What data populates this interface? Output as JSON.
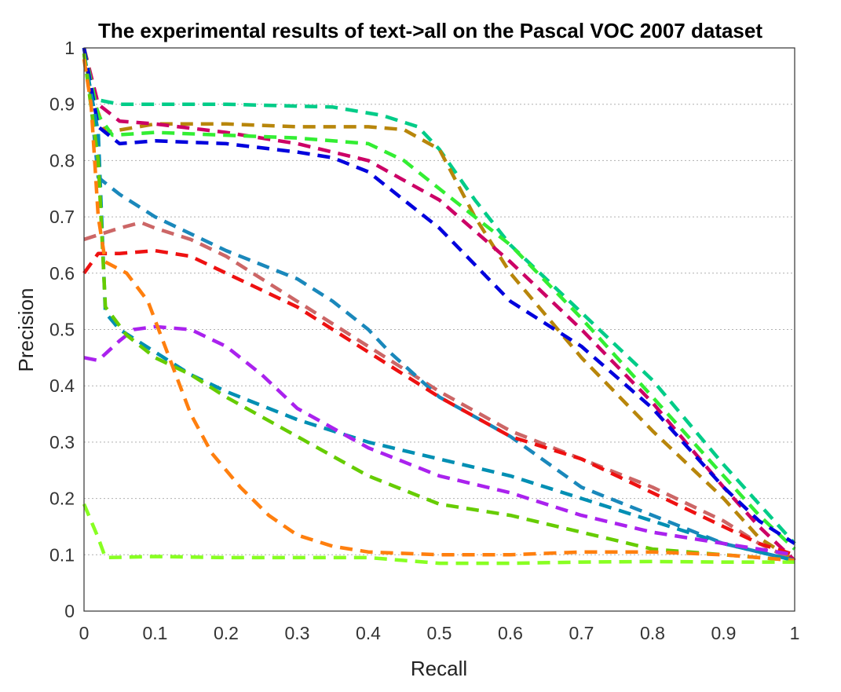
{
  "chart_data": {
    "type": "line",
    "title": "The experimental results of text->all on the Pascal VOC 2007 dataset",
    "xlabel": "Recall",
    "ylabel": "Precision",
    "xlim": [
      0,
      1
    ],
    "ylim": [
      0,
      1
    ],
    "x_ticks": [
      "0",
      "0.1",
      "0.2",
      "0.3",
      "0.4",
      "0.5",
      "0.6",
      "0.7",
      "0.8",
      "0.9",
      "1"
    ],
    "y_ticks": [
      "0",
      "0.1",
      "0.2",
      "0.3",
      "0.4",
      "0.5",
      "0.6",
      "0.7",
      "0.8",
      "0.9",
      "1"
    ],
    "grid": "horizontal dotted",
    "legend": "none",
    "series": [
      {
        "color": "#00cc88",
        "points": [
          [
            0,
            1.0
          ],
          [
            0.01,
            0.91
          ],
          [
            0.05,
            0.9
          ],
          [
            0.2,
            0.9
          ],
          [
            0.35,
            0.895
          ],
          [
            0.42,
            0.88
          ],
          [
            0.47,
            0.86
          ],
          [
            0.5,
            0.82
          ],
          [
            0.55,
            0.73
          ],
          [
            0.6,
            0.65
          ],
          [
            0.7,
            0.53
          ],
          [
            0.8,
            0.41
          ],
          [
            0.9,
            0.26
          ],
          [
            0.95,
            0.19
          ],
          [
            1.0,
            0.12
          ]
        ]
      },
      {
        "color": "#b8860b",
        "points": [
          [
            0,
            1.0
          ],
          [
            0.01,
            0.92
          ],
          [
            0.03,
            0.85
          ],
          [
            0.1,
            0.865
          ],
          [
            0.2,
            0.865
          ],
          [
            0.3,
            0.86
          ],
          [
            0.4,
            0.86
          ],
          [
            0.45,
            0.855
          ],
          [
            0.5,
            0.82
          ],
          [
            0.55,
            0.7
          ],
          [
            0.6,
            0.6
          ],
          [
            0.7,
            0.45
          ],
          [
            0.8,
            0.32
          ],
          [
            0.9,
            0.2
          ],
          [
            0.95,
            0.13
          ],
          [
            1.0,
            0.09
          ]
        ]
      },
      {
        "color": "#cc0066",
        "points": [
          [
            0,
            1.0
          ],
          [
            0.02,
            0.9
          ],
          [
            0.05,
            0.87
          ],
          [
            0.1,
            0.865
          ],
          [
            0.2,
            0.85
          ],
          [
            0.3,
            0.83
          ],
          [
            0.4,
            0.8
          ],
          [
            0.5,
            0.73
          ],
          [
            0.6,
            0.62
          ],
          [
            0.7,
            0.5
          ],
          [
            0.8,
            0.37
          ],
          [
            0.9,
            0.22
          ],
          [
            0.95,
            0.15
          ],
          [
            1.0,
            0.09
          ]
        ]
      },
      {
        "color": "#33ee33",
        "points": [
          [
            0,
            1.0
          ],
          [
            0.02,
            0.88
          ],
          [
            0.04,
            0.845
          ],
          [
            0.1,
            0.85
          ],
          [
            0.2,
            0.845
          ],
          [
            0.3,
            0.84
          ],
          [
            0.4,
            0.83
          ],
          [
            0.45,
            0.8
          ],
          [
            0.5,
            0.75
          ],
          [
            0.6,
            0.65
          ],
          [
            0.7,
            0.52
          ],
          [
            0.8,
            0.38
          ],
          [
            0.9,
            0.24
          ],
          [
            0.95,
            0.17
          ],
          [
            1.0,
            0.11
          ]
        ]
      },
      {
        "color": "#0000dd",
        "points": [
          [
            0,
            1.0
          ],
          [
            0.02,
            0.86
          ],
          [
            0.05,
            0.83
          ],
          [
            0.1,
            0.835
          ],
          [
            0.2,
            0.83
          ],
          [
            0.3,
            0.815
          ],
          [
            0.35,
            0.805
          ],
          [
            0.4,
            0.78
          ],
          [
            0.5,
            0.68
          ],
          [
            0.6,
            0.55
          ],
          [
            0.7,
            0.47
          ],
          [
            0.8,
            0.36
          ],
          [
            0.9,
            0.22
          ],
          [
            0.95,
            0.16
          ],
          [
            1.0,
            0.12
          ]
        ]
      },
      {
        "color": "#cc6666",
        "points": [
          [
            0,
            0.66
          ],
          [
            0.05,
            0.68
          ],
          [
            0.08,
            0.69
          ],
          [
            0.1,
            0.68
          ],
          [
            0.15,
            0.66
          ],
          [
            0.2,
            0.63
          ],
          [
            0.25,
            0.59
          ],
          [
            0.3,
            0.55
          ],
          [
            0.4,
            0.47
          ],
          [
            0.5,
            0.39
          ],
          [
            0.6,
            0.32
          ],
          [
            0.7,
            0.27
          ],
          [
            0.8,
            0.22
          ],
          [
            0.9,
            0.16
          ],
          [
            0.95,
            0.12
          ],
          [
            1.0,
            0.09
          ]
        ]
      },
      {
        "color": "#1a88bb",
        "points": [
          [
            0,
            0.99
          ],
          [
            0.01,
            0.9
          ],
          [
            0.02,
            0.77
          ],
          [
            0.05,
            0.74
          ],
          [
            0.1,
            0.7
          ],
          [
            0.2,
            0.64
          ],
          [
            0.3,
            0.59
          ],
          [
            0.35,
            0.55
          ],
          [
            0.4,
            0.5
          ],
          [
            0.43,
            0.46
          ],
          [
            0.5,
            0.38
          ],
          [
            0.6,
            0.31
          ],
          [
            0.7,
            0.22
          ],
          [
            0.8,
            0.17
          ],
          [
            0.9,
            0.12
          ],
          [
            1.0,
            0.09
          ]
        ]
      },
      {
        "color": "#ee1111",
        "points": [
          [
            0,
            0.6
          ],
          [
            0.02,
            0.635
          ],
          [
            0.05,
            0.635
          ],
          [
            0.1,
            0.64
          ],
          [
            0.15,
            0.63
          ],
          [
            0.2,
            0.6
          ],
          [
            0.3,
            0.54
          ],
          [
            0.4,
            0.46
          ],
          [
            0.5,
            0.38
          ],
          [
            0.6,
            0.31
          ],
          [
            0.7,
            0.27
          ],
          [
            0.8,
            0.21
          ],
          [
            0.9,
            0.15
          ],
          [
            0.95,
            0.12
          ],
          [
            1.0,
            0.1
          ]
        ]
      },
      {
        "color": "#008fb3",
        "points": [
          [
            0,
            0.99
          ],
          [
            0.01,
            0.92
          ],
          [
            0.02,
            0.85
          ],
          [
            0.03,
            0.53
          ],
          [
            0.05,
            0.5
          ],
          [
            0.1,
            0.46
          ],
          [
            0.15,
            0.42
          ],
          [
            0.2,
            0.39
          ],
          [
            0.3,
            0.34
          ],
          [
            0.4,
            0.3
          ],
          [
            0.5,
            0.27
          ],
          [
            0.6,
            0.24
          ],
          [
            0.7,
            0.2
          ],
          [
            0.8,
            0.16
          ],
          [
            0.9,
            0.12
          ],
          [
            1.0,
            0.09
          ]
        ]
      },
      {
        "color": "#aa22ee",
        "points": [
          [
            0,
            0.45
          ],
          [
            0.02,
            0.445
          ],
          [
            0.05,
            0.48
          ],
          [
            0.07,
            0.5
          ],
          [
            0.1,
            0.505
          ],
          [
            0.15,
            0.5
          ],
          [
            0.2,
            0.47
          ],
          [
            0.25,
            0.42
          ],
          [
            0.3,
            0.36
          ],
          [
            0.4,
            0.29
          ],
          [
            0.5,
            0.24
          ],
          [
            0.6,
            0.21
          ],
          [
            0.7,
            0.17
          ],
          [
            0.8,
            0.14
          ],
          [
            0.9,
            0.12
          ],
          [
            1.0,
            0.1
          ]
        ]
      },
      {
        "color": "#66cc00",
        "points": [
          [
            0,
            0.99
          ],
          [
            0.02,
            0.8
          ],
          [
            0.03,
            0.54
          ],
          [
            0.06,
            0.49
          ],
          [
            0.1,
            0.45
          ],
          [
            0.15,
            0.42
          ],
          [
            0.2,
            0.38
          ],
          [
            0.3,
            0.31
          ],
          [
            0.4,
            0.24
          ],
          [
            0.5,
            0.19
          ],
          [
            0.6,
            0.17
          ],
          [
            0.7,
            0.14
          ],
          [
            0.8,
            0.11
          ],
          [
            0.9,
            0.1
          ],
          [
            1.0,
            0.09
          ]
        ]
      },
      {
        "color": "#ff7f0e",
        "points": [
          [
            0,
            0.98
          ],
          [
            0.01,
            0.9
          ],
          [
            0.02,
            0.7
          ],
          [
            0.03,
            0.62
          ],
          [
            0.06,
            0.6
          ],
          [
            0.09,
            0.55
          ],
          [
            0.12,
            0.45
          ],
          [
            0.15,
            0.35
          ],
          [
            0.18,
            0.28
          ],
          [
            0.22,
            0.22
          ],
          [
            0.26,
            0.17
          ],
          [
            0.3,
            0.135
          ],
          [
            0.35,
            0.115
          ],
          [
            0.4,
            0.105
          ],
          [
            0.5,
            0.1
          ],
          [
            0.6,
            0.1
          ],
          [
            0.7,
            0.105
          ],
          [
            0.8,
            0.105
          ],
          [
            0.9,
            0.1
          ],
          [
            1.0,
            0.09
          ]
        ]
      },
      {
        "color": "#88ff22",
        "points": [
          [
            0,
            0.19
          ],
          [
            0.02,
            0.13
          ],
          [
            0.03,
            0.095
          ],
          [
            0.1,
            0.097
          ],
          [
            0.2,
            0.095
          ],
          [
            0.3,
            0.095
          ],
          [
            0.4,
            0.095
          ],
          [
            0.45,
            0.09
          ],
          [
            0.5,
            0.085
          ],
          [
            0.6,
            0.085
          ],
          [
            0.7,
            0.087
          ],
          [
            0.8,
            0.088
          ],
          [
            0.9,
            0.087
          ],
          [
            1.0,
            0.087
          ]
        ]
      }
    ]
  }
}
